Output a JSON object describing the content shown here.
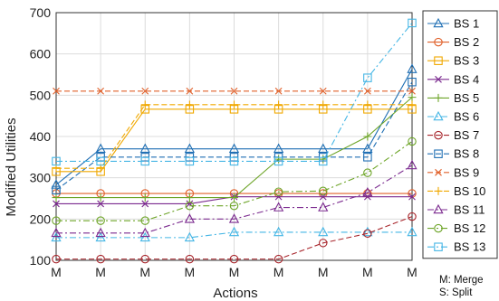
{
  "chart_data": {
    "type": "line",
    "title": "",
    "xlabel": "Actions",
    "ylabel": "Modified Utilities",
    "ylim": [
      100,
      700
    ],
    "yticks": [
      100,
      200,
      300,
      400,
      500,
      600,
      700
    ],
    "categories": [
      "M",
      "M",
      "M",
      "M",
      "M",
      "M",
      "M",
      "M",
      "M"
    ],
    "grid": true,
    "legend": "right",
    "notes": [
      "M: Merge",
      "S: Split"
    ],
    "series": [
      {
        "name": "BS 1",
        "color": "#1f6fb4",
        "marker": "triangle-up",
        "dash": "solid",
        "values": [
          283,
          370,
          370,
          370,
          370,
          370,
          370,
          370,
          563
        ]
      },
      {
        "name": "BS 2",
        "color": "#e0602a",
        "marker": "circle",
        "dash": "solid",
        "values": [
          262,
          262,
          262,
          262,
          262,
          262,
          262,
          262,
          262
        ]
      },
      {
        "name": "BS 3",
        "color": "#f0a800",
        "marker": "square",
        "dash": "solid",
        "values": [
          315,
          315,
          466,
          466,
          466,
          466,
          466,
          466,
          466
        ]
      },
      {
        "name": "BS 4",
        "color": "#7b2a8f",
        "marker": "x",
        "dash": "solid",
        "values": [
          237,
          237,
          237,
          237,
          254,
          254,
          254,
          254,
          254
        ]
      },
      {
        "name": "BS 5",
        "color": "#6ea529",
        "marker": "plus",
        "dash": "solid",
        "values": [
          252,
          252,
          252,
          252,
          252,
          345,
          345,
          400,
          495
        ]
      },
      {
        "name": "BS 6",
        "color": "#45b6e5",
        "marker": "triangle-up",
        "dash": "dashdot",
        "values": [
          155,
          155,
          155,
          155,
          168,
          168,
          168,
          168,
          168
        ]
      },
      {
        "name": "BS 7",
        "color": "#a8262c",
        "marker": "circle",
        "dash": "dashed",
        "values": [
          103,
          103,
          103,
          103,
          103,
          103,
          142,
          165,
          206
        ]
      },
      {
        "name": "BS 8",
        "color": "#1f6fb4",
        "marker": "square",
        "dash": "dashed",
        "values": [
          270,
          350,
          350,
          350,
          350,
          350,
          350,
          350,
          532
        ]
      },
      {
        "name": "BS 9",
        "color": "#e0602a",
        "marker": "x",
        "dash": "dashed",
        "values": [
          510,
          510,
          510,
          510,
          510,
          510,
          510,
          510,
          510
        ]
      },
      {
        "name": "BS 10",
        "color": "#f0a800",
        "marker": "plus",
        "dash": "dashed",
        "values": [
          323,
          323,
          477,
          477,
          477,
          477,
          477,
          477,
          477
        ]
      },
      {
        "name": "BS 11",
        "color": "#7b2a8f",
        "marker": "triangle-up",
        "dash": "dashdot",
        "values": [
          166,
          166,
          166,
          200,
          200,
          228,
          228,
          264,
          330
        ]
      },
      {
        "name": "BS 12",
        "color": "#6ea529",
        "marker": "circle",
        "dash": "dashdot",
        "values": [
          196,
          196,
          196,
          232,
          232,
          266,
          268,
          312,
          388
        ]
      },
      {
        "name": "BS 13",
        "color": "#45b6e5",
        "marker": "square",
        "dash": "dashdot",
        "values": [
          340,
          340,
          340,
          340,
          340,
          340,
          340,
          542,
          675
        ]
      }
    ]
  }
}
